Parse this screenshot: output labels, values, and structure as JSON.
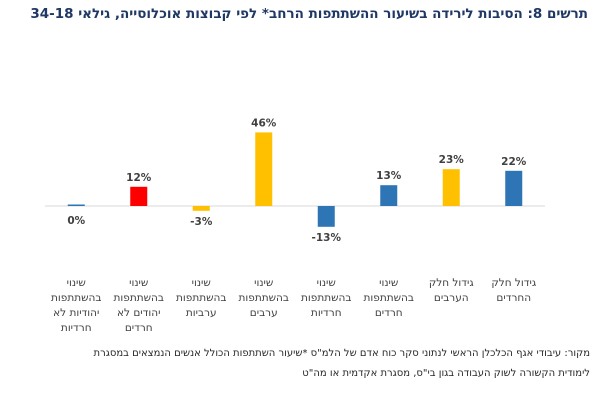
{
  "title": "תרשים 8: הסיבות לירידה בשיעור ההשתתפות הרחב* לפי קבוצות אוכלוסייה, גילאי 34-18",
  "source_lines": [
    "מקור: עיבודי אגף הכלכלן הראשי לנתוני סקר כוח אדם של הלמ\"ס *שיעור השתתפות הכולל אנשים הנמצאים במסגרת",
    "לימודית הקשורה לשוק העבודה בגון בי\"ס, מסגרת אקדמית או מה\"ט"
  ],
  "chart_data": {
    "type": "bar",
    "categories": [
      [
        "גידול חלק",
        "החרדים"
      ],
      [
        "גידול חלק",
        "הערבים"
      ],
      [
        "שינוי",
        "בהשתתפות",
        "חרדים"
      ],
      [
        "שינוי",
        "בהשתתפות",
        "חרדיות"
      ],
      [
        "שינוי",
        "בהשתתפות",
        "ערבים"
      ],
      [
        "שינוי",
        "בהשתתפות",
        "ערביות"
      ],
      [
        "שינוי",
        "בהשתתפות",
        "יהודים לא",
        "חרדים"
      ],
      [
        "שינוי",
        "בהשתתפות",
        "יהודיות לא",
        "חרדיות"
      ]
    ],
    "values": [
      22,
      23,
      13,
      -13,
      46,
      -3,
      12,
      0
    ],
    "value_labels": [
      "22%",
      "23%",
      "13%",
      "-13%",
      "46%",
      "-3%",
      "12%",
      "0%"
    ],
    "colors": [
      "#2e75b6",
      "#ffc000",
      "#2e75b6",
      "#2e75b6",
      "#ffc000",
      "#ffc000",
      "#ff0000",
      "#2e75b6"
    ],
    "order": "right-to-left",
    "grid": false
  }
}
